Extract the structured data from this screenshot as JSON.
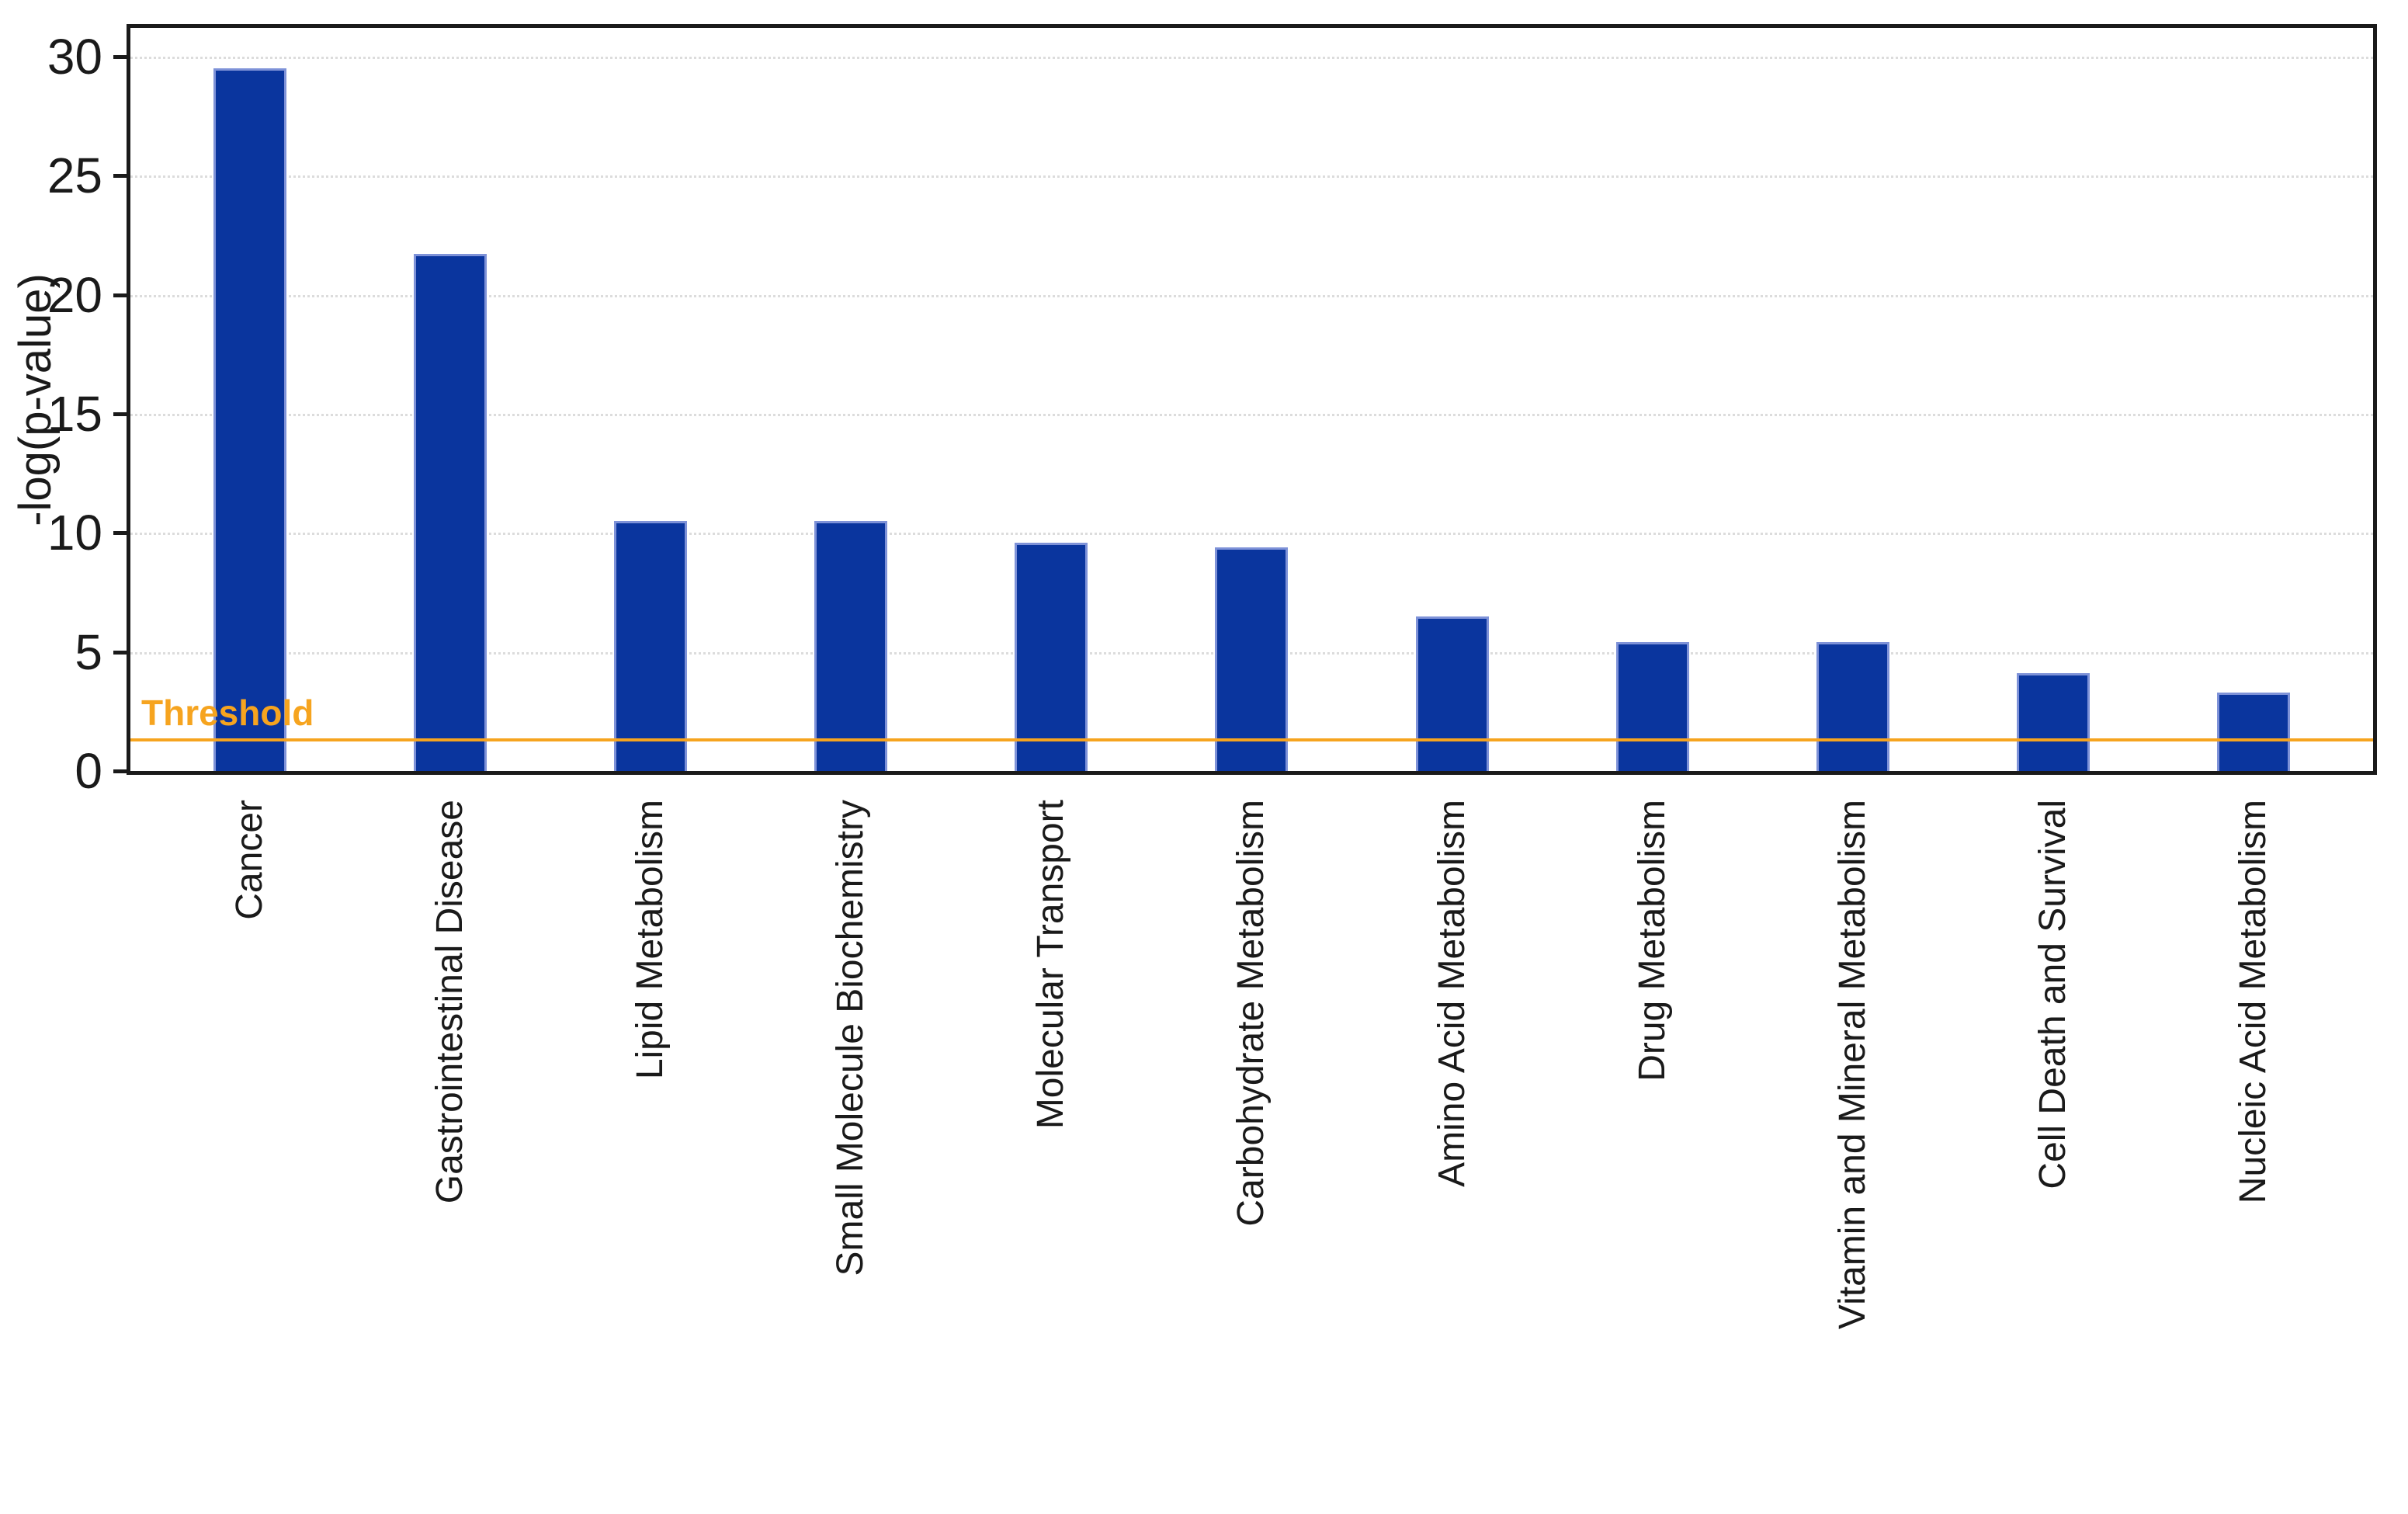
{
  "chart_data": {
    "type": "bar",
    "title": "",
    "xlabel": "",
    "ylabel": "-log(p-value)",
    "categories": [
      "Cancer",
      "Gastrointestinal Disease",
      "Lipid Metabolism",
      "Small Molecule Biochemistry",
      "Molecular Transport",
      "Carbohydrate Metabolism",
      "Amino Acid Metabolism",
      "Drug Metabolism",
      "Vitamin and Mineral Metabolism",
      "Cell Death and Survival",
      "Nucleic Acid Metabolism"
    ],
    "values": [
      29.5,
      21.7,
      10.5,
      10.5,
      9.6,
      9.4,
      6.5,
      5.4,
      5.4,
      4.1,
      3.3
    ],
    "yticks": [
      0,
      5,
      10,
      15,
      20,
      25,
      30
    ],
    "ylim": [
      0,
      31.2
    ],
    "grid": "dotted-horizontal",
    "legend_position": "none",
    "threshold": {
      "label": "Threshold",
      "value": 1.3
    },
    "colors": {
      "bar_fill": "#0a359e",
      "bar_edge": "#7e92d8",
      "threshold": "#f6a41f",
      "grid": "#dcdcdc",
      "axis": "#1a1a1a",
      "text": "#1a1a1a",
      "background": "#ffffff"
    }
  }
}
